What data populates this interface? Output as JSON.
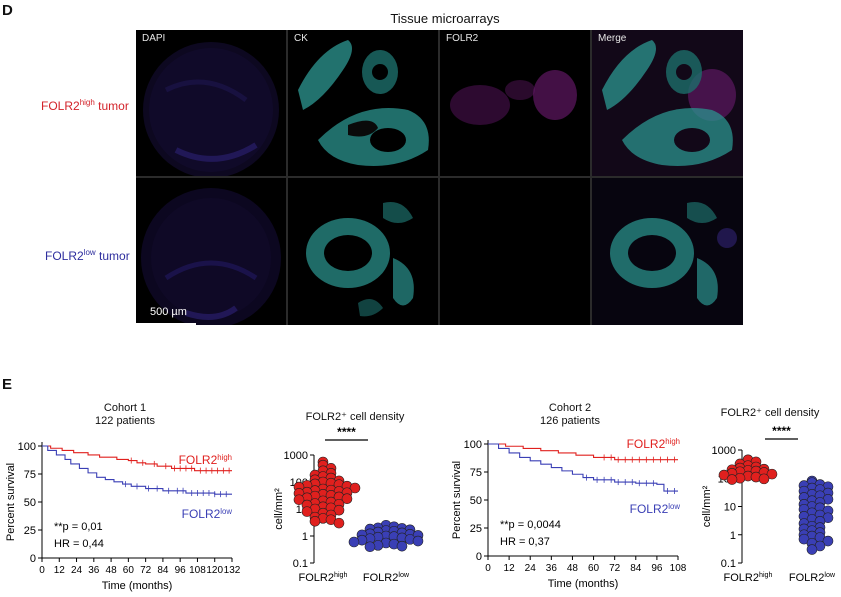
{
  "panel_d": {
    "letter": "D",
    "title": "Tissue microarrays",
    "channels": [
      "DAPI",
      "CK",
      "FOLR2",
      "Merge"
    ],
    "rows": [
      {
        "prefix": "FOLR2",
        "sup": "high",
        "suffix": " tumor",
        "color": "#d3232a"
      },
      {
        "prefix": "FOLR2",
        "sup": "low",
        "suffix": " tumor",
        "color": "#2e2e9e"
      }
    ],
    "scale_bar": "500 µm"
  },
  "panel_e": {
    "letter": "E",
    "colors": {
      "high": "#e0201e",
      "low": "#3a3fb5"
    },
    "chart_data": [
      {
        "type": "line",
        "title": "Cohort 1",
        "subtitle": "122 patients",
        "xlabel": "Time (months)",
        "ylabel": "Percent survival",
        "xlim": [
          0,
          132
        ],
        "ylim": [
          0,
          100
        ],
        "xticks": [
          0,
          12,
          24,
          36,
          48,
          60,
          72,
          84,
          96,
          108,
          120,
          132
        ],
        "yticks": [
          0,
          25,
          50,
          75,
          100
        ],
        "series": [
          {
            "name": "FOLR2high",
            "key": "high",
            "x": [
              0,
              6,
              14,
              22,
              32,
              40,
              52,
              60,
              66,
              72,
              80,
              90,
              100,
              106,
              132
            ],
            "y": [
              100,
              98,
              96,
              94,
              92,
              90,
              88,
              87,
              85,
              84,
              82,
              80,
              80,
              78,
              78
            ],
            "censor": [
              62,
              70,
              78,
              86,
              92,
              96,
              100,
              104,
              110,
              114,
              118,
              122,
              126,
              130
            ]
          },
          {
            "name": "FOLR2low",
            "key": "low",
            "x": [
              0,
              4,
              10,
              16,
              20,
              26,
              32,
              38,
              44,
              50,
              56,
              62,
              72,
              84,
              100,
              120,
              132
            ],
            "y": [
              100,
              96,
              92,
              88,
              84,
              80,
              76,
              72,
              70,
              68,
              66,
              64,
              62,
              60,
              58,
              57,
              57
            ],
            "censor": [
              58,
              66,
              74,
              80,
              88,
              94,
              98,
              104,
              108,
              112,
              116,
              120,
              124,
              128
            ]
          }
        ],
        "legend": [
          {
            "prefix": "FOLR2",
            "sup": "high",
            "key": "high"
          },
          {
            "prefix": "FOLR2",
            "sup": "low",
            "key": "low"
          }
        ],
        "annotations": [
          "**p = 0,01",
          "HR = 0,44"
        ]
      },
      {
        "type": "scatter",
        "title": "FOLR2⁺ cell density",
        "ylabel": "cell/mm²",
        "yscale": "log",
        "ylim": [
          0.1,
          1000
        ],
        "yticks": [
          "0.1",
          "1",
          "10",
          "100",
          "1000"
        ],
        "categories": [
          {
            "prefix": "FOLR2",
            "sup": "high"
          },
          {
            "prefix": "FOLR2",
            "sup": "low"
          }
        ],
        "groups": [
          {
            "key": "high",
            "values": [
              550,
              420,
              320,
              260,
              210,
              180,
              160,
              140,
              120,
              110,
              100,
              90,
              85,
              80,
              75,
              70,
              65,
              60,
              55,
              50,
              48,
              45,
              42,
              40,
              38,
              35,
              32,
              30,
              28,
              26,
              24,
              22,
              20,
              18,
              16,
              15,
              14,
              12,
              11,
              10,
              9,
              8,
              7,
              6,
              5,
              4.5,
              4,
              3.5,
              3
            ]
          },
          {
            "key": "low",
            "values": [
              2.5,
              2.2,
              2,
              1.9,
              1.8,
              1.7,
              1.6,
              1.5,
              1.4,
              1.3,
              1.2,
              1.15,
              1.1,
              1.05,
              1,
              0.95,
              0.9,
              0.85,
              0.8,
              0.75,
              0.7,
              0.65,
              0.6,
              0.55,
              0.5,
              0.45,
              0.42,
              0.4
            ]
          }
        ],
        "significance": "****"
      },
      {
        "type": "line",
        "title": "Cohort 2",
        "subtitle": "126 patients",
        "xlabel": "Time (months)",
        "ylabel": "Percent survival",
        "xlim": [
          0,
          108
        ],
        "ylim": [
          0,
          100
        ],
        "xticks": [
          0,
          12,
          24,
          36,
          48,
          60,
          72,
          84,
          96,
          108
        ],
        "yticks": [
          0,
          25,
          50,
          75,
          100
        ],
        "series": [
          {
            "name": "FOLR2high",
            "key": "high",
            "x": [
              0,
              10,
              20,
              30,
              40,
              50,
              60,
              72,
              108
            ],
            "y": [
              100,
              98,
              96,
              94,
              92,
              90,
              88,
              86,
              86
            ],
            "censor": [
              66,
              70,
              74,
              78,
              82,
              86,
              90,
              94,
              98,
              102,
              106
            ]
          },
          {
            "name": "FOLR2low",
            "key": "low",
            "x": [
              0,
              6,
              12,
              18,
              24,
              30,
              36,
              42,
              48,
              54,
              60,
              72,
              84,
              96,
              100,
              108
            ],
            "y": [
              100,
              96,
              92,
              88,
              85,
              82,
              79,
              76,
              73,
              70,
              68,
              66,
              65,
              64,
              58,
              58
            ],
            "censor": [
              56,
              62,
              66,
              70,
              74,
              78,
              82,
              86,
              90,
              94,
              102,
              106
            ]
          }
        ],
        "legend": [
          {
            "prefix": "FOLR2",
            "sup": "high",
            "key": "high"
          },
          {
            "prefix": "FOLR2",
            "sup": "low",
            "key": "low"
          }
        ],
        "annotations": [
          "**p = 0,0044",
          "HR = 0,37"
        ]
      },
      {
        "type": "scatter",
        "title": "FOLR2⁺ cell density",
        "ylabel": "cell/mm²",
        "yscale": "log",
        "ylim": [
          0.1,
          1000
        ],
        "yticks": [
          "0.1",
          "1",
          "10",
          "100",
          "1000"
        ],
        "categories": [
          {
            "prefix": "FOLR2",
            "sup": "high"
          },
          {
            "prefix": "FOLR2",
            "sup": "low"
          }
        ],
        "groups": [
          {
            "key": "high",
            "values": [
              450,
              380,
              320,
              280,
              250,
              230,
              210,
              200,
              190,
              180,
              170,
              160,
              150,
              140,
              130,
              120,
              110,
              100,
              95,
              90
            ]
          },
          {
            "key": "low",
            "values": [
              80,
              70,
              60,
              55,
              50,
              45,
              40,
              35,
              30,
              27,
              24,
              21,
              18,
              16,
              14,
              12,
              10,
              9,
              8,
              7,
              6,
              5,
              4.5,
              4,
              3.5,
              3,
              2.5,
              2,
              1.8,
              1.6,
              1.4,
              1.2,
              1,
              0.9,
              0.8,
              0.7,
              0.6,
              0.5,
              0.4,
              0.3
            ]
          }
        ],
        "significance": "****"
      }
    ]
  }
}
